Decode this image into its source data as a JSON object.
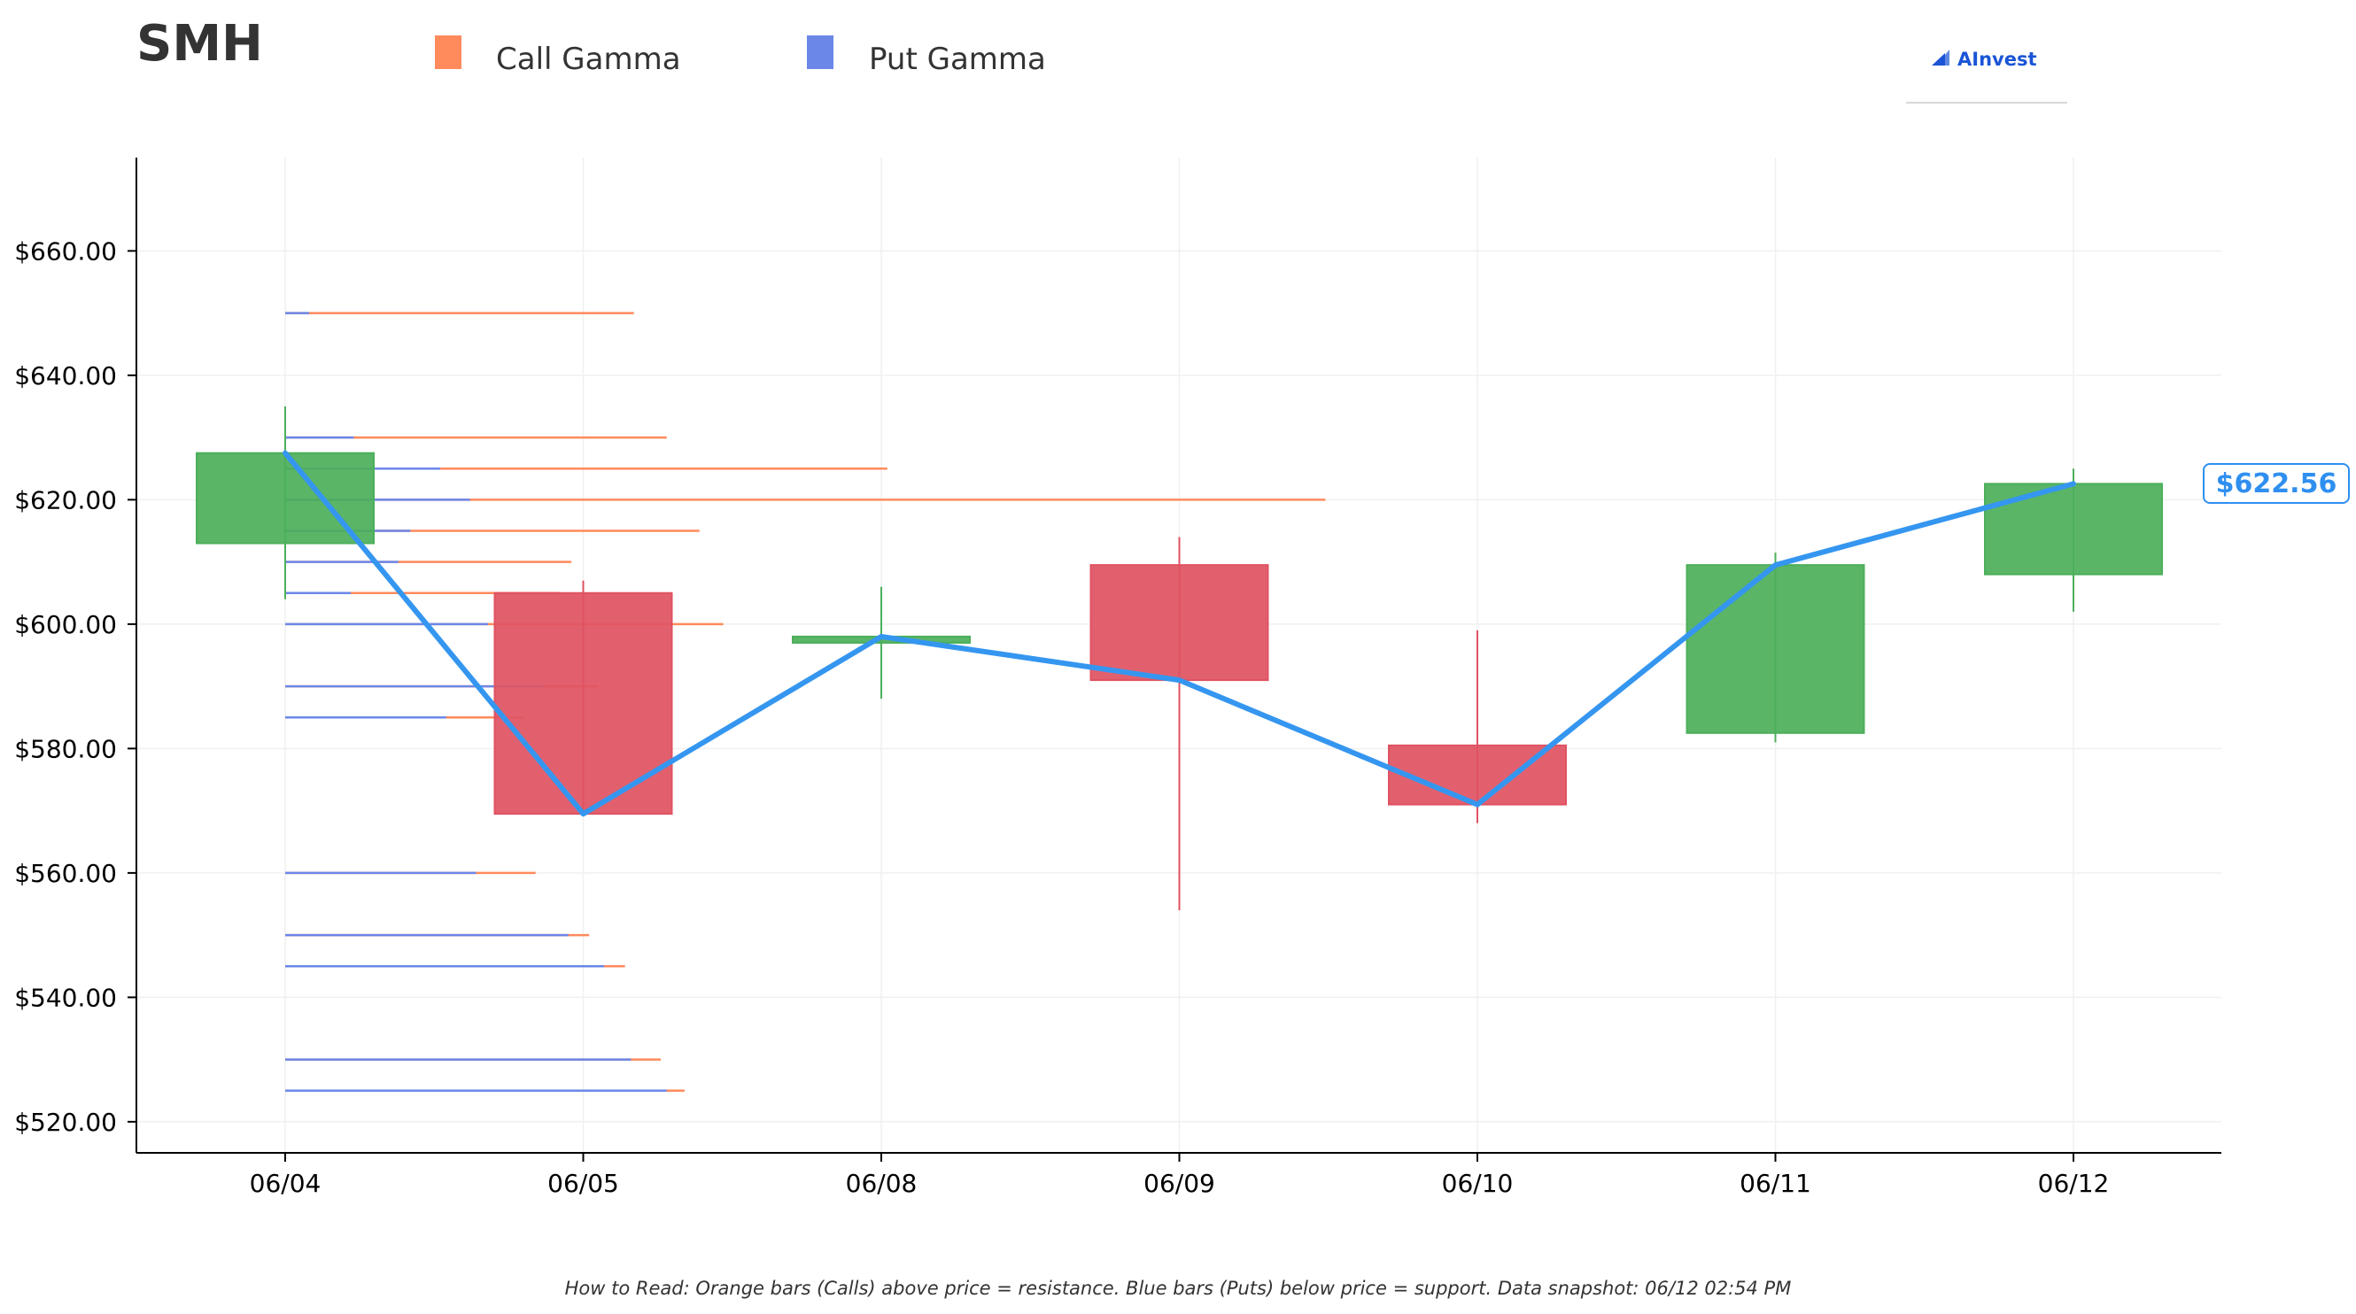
{
  "ticker": "SMH",
  "legend": {
    "call_label": "Call Gamma",
    "put_label": "Put Gamma"
  },
  "brand": {
    "name": "AInvest",
    "icon": "ainvest-logo-icon"
  },
  "footnote": "How to Read: Orange bars (Calls) above price = resistance. Blue bars (Puts) below price = support. Data snapshot: 06/12 02:54 PM",
  "current_price_label": "$622.56",
  "colors": {
    "call": "#ff8a5c",
    "put": "#6b87e8",
    "up": "#4caf5a",
    "down": "#e05262",
    "price_line": "#3596f0",
    "grid": "#f0f0f0"
  },
  "chart_data": {
    "type": "candlestick",
    "categories": [
      "06/04",
      "06/05",
      "06/08",
      "06/09",
      "06/10",
      "06/11",
      "06/12"
    ],
    "ylim": [
      515,
      675
    ],
    "yticks": [
      520,
      540,
      560,
      580,
      600,
      620,
      640,
      660
    ],
    "ytick_labels": [
      "$520.00",
      "$540.00",
      "$560.00",
      "$580.00",
      "$600.00",
      "$620.00",
      "$640.00",
      "$660.00"
    ],
    "grid": true,
    "candles": [
      {
        "date": "06/04",
        "open": 613,
        "high": 635,
        "low": 604,
        "close": 627.5
      },
      {
        "date": "06/05",
        "open": 605,
        "high": 607,
        "low": 569.5,
        "close": 569.5
      },
      {
        "date": "06/08",
        "open": 597,
        "high": 606,
        "low": 588,
        "close": 598
      },
      {
        "date": "06/09",
        "open": 609.5,
        "high": 614,
        "low": 554,
        "close": 591
      },
      {
        "date": "06/10",
        "open": 580.5,
        "high": 599,
        "low": 568,
        "close": 571
      },
      {
        "date": "06/11",
        "open": 582.5,
        "high": 611.5,
        "low": 581,
        "close": 609.5
      },
      {
        "date": "06/12",
        "open": 608,
        "high": 625,
        "low": 602,
        "close": 622.56
      }
    ],
    "price_line": {
      "name": "",
      "values": [
        627.5,
        569.5,
        598,
        591,
        571,
        609.5,
        622.56
      ]
    },
    "gamma_bars": [
      {
        "strike": 650,
        "put": 0.08,
        "call": 1.17
      },
      {
        "strike": 630,
        "put": 0.23,
        "call": 1.28
      },
      {
        "strike": 625,
        "put": 0.52,
        "call": 2.02
      },
      {
        "strike": 620,
        "put": 0.62,
        "call": 3.49
      },
      {
        "strike": 615,
        "put": 0.42,
        "call": 1.39
      },
      {
        "strike": 610,
        "put": 0.38,
        "call": 0.96
      },
      {
        "strike": 605,
        "put": 0.22,
        "call": 0.92
      },
      {
        "strike": 600,
        "put": 0.68,
        "call": 1.47
      },
      {
        "strike": 590,
        "put": 0.87,
        "call": 1.05
      },
      {
        "strike": 585,
        "put": 0.54,
        "call": 0.8
      },
      {
        "strike": 560,
        "put": 0.64,
        "call": 0.84
      },
      {
        "strike": 550,
        "put": 0.95,
        "call": 1.02
      },
      {
        "strike": 545,
        "put": 1.07,
        "call": 1.14
      },
      {
        "strike": 530,
        "put": 1.16,
        "call": 1.26
      },
      {
        "strike": 525,
        "put": 1.28,
        "call": 1.34
      }
    ]
  }
}
